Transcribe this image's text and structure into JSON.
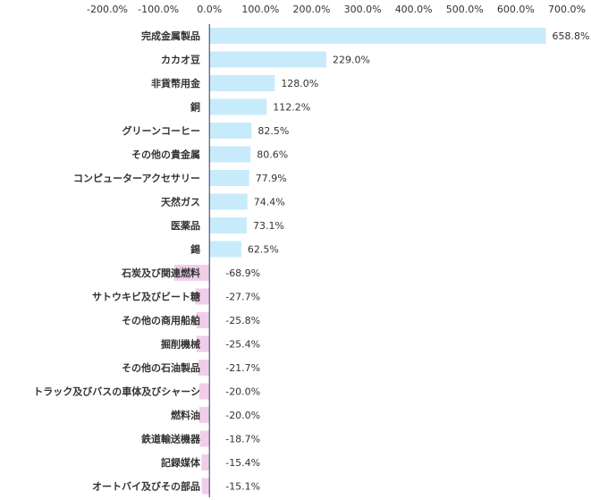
{
  "chart_data": {
    "type": "bar",
    "orientation": "horizontal",
    "x_ticks": [
      "-200.0%",
      "-100.0%",
      "0.0%",
      "100.0%",
      "200.0%",
      "300.0%",
      "400.0%",
      "500.0%",
      "600.0%",
      "700.0%"
    ],
    "xlim": [
      -200,
      700
    ],
    "categories": [
      "完成金属製品",
      "カカオ豆",
      "非貨幣用金",
      "銅",
      "グリーンコーヒー",
      "その他の貴金属",
      "コンピューターアクセサリー",
      "天然ガス",
      "医薬品",
      "錫",
      "石炭及び関連燃料",
      "サトウキビ及びビート糖",
      "その他の商用船舶",
      "掘削機械",
      "その他の石油製品",
      "トラック及びバスの車体及びシャーシ",
      "燃料油",
      "鉄道輸送機器",
      "記録媒体",
      "オートバイ及びその部品"
    ],
    "values": [
      658.8,
      229.0,
      128.0,
      112.2,
      82.5,
      80.6,
      77.9,
      74.4,
      73.1,
      62.5,
      -68.9,
      -27.7,
      -25.8,
      -25.4,
      -21.7,
      -20.0,
      -20.0,
      -18.7,
      -15.4,
      -15.1
    ],
    "value_labels": [
      "658.8%",
      "229.0%",
      "128.0%",
      "112.2%",
      "82.5%",
      "80.6%",
      "77.9%",
      "74.4%",
      "73.1%",
      "62.5%",
      "-68.9%",
      "-27.7%",
      "-25.8%",
      "-25.4%",
      "-21.7%",
      "-20.0%",
      "-20.0%",
      "-18.7%",
      "-15.4%",
      "-15.1%"
    ],
    "grid": false,
    "colors": {
      "positive": "#c8ebfb",
      "negative": "#f2cdea",
      "axis": "#2b3a55"
    }
  }
}
